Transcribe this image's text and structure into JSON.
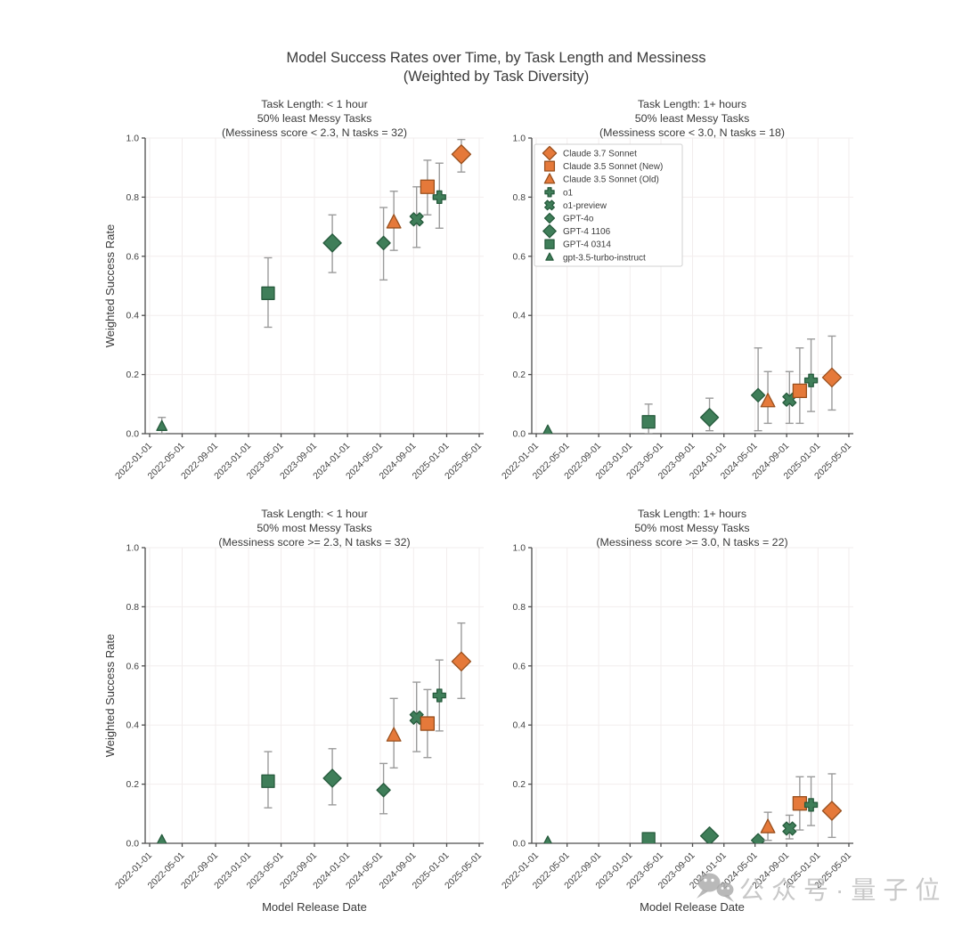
{
  "figure": {
    "title_line1": "Model Success Rates over Time, by Task Length and Messiness",
    "title_line2": "(Weighted by Task Diversity)"
  },
  "colors": {
    "background": "#ffffff",
    "grid": "#f2eded",
    "spine": "#4d4d4d",
    "errorbar": "#9b9b9b",
    "text": "#3a3a3a",
    "palette": {
      "orange": {
        "fill": "#e5793a",
        "edge": "#99501f"
      },
      "green": {
        "fill": "#3f7e59",
        "edge": "#265a3c"
      }
    }
  },
  "watermark": {
    "icon": "wechat-icon",
    "text": "公众号·量子位"
  },
  "chart_data": {
    "type": "scatter",
    "title": "Model Success Rates over Time, by Task Length and Messiness (Weighted by Task Diversity)",
    "xlabel": "Model Release Date",
    "ylabel": "Weighted Success Rate",
    "xlim": [
      "2022-01-01",
      "2025-05-01"
    ],
    "ylim": [
      0.0,
      1.0
    ],
    "grid": true,
    "x_tick_labels": [
      "2022-01-01",
      "2022-05-01",
      "2022-09-01",
      "2023-01-01",
      "2023-05-01",
      "2023-09-01",
      "2024-01-01",
      "2024-05-01",
      "2024-09-01",
      "2025-01-01",
      "2025-05-01"
    ],
    "y_ticks": [
      0.0,
      0.2,
      0.4,
      0.6,
      0.8,
      1.0
    ],
    "y_tick_labels": [
      "0.0",
      "0.2",
      "0.4",
      "0.6",
      "0.8",
      "1.0"
    ],
    "legend_position": "upper-left of top-right subplot",
    "models": [
      {
        "id": "claude-3-7-sonnet",
        "label": "Claude 3.7 Sonnet",
        "shape": "diamond",
        "color": "orange",
        "size": 21,
        "x": "2025-02-24"
      },
      {
        "id": "claude-3-5-sonnet-new",
        "label": "Claude 3.5 Sonnet (New)",
        "shape": "square",
        "color": "orange",
        "size": 15,
        "x": "2024-10-22"
      },
      {
        "id": "claude-3-5-sonnet-old",
        "label": "Claude 3.5 Sonnet (Old)",
        "shape": "triangle",
        "color": "orange",
        "size": 15,
        "x": "2024-06-20"
      },
      {
        "id": "o1",
        "label": "o1",
        "shape": "plus",
        "color": "green",
        "size": 14,
        "x": "2024-12-05"
      },
      {
        "id": "o1-preview",
        "label": "o1-preview",
        "shape": "x",
        "color": "green",
        "size": 14,
        "x": "2024-09-12"
      },
      {
        "id": "gpt-4o",
        "label": "GPT-4o",
        "shape": "diamond",
        "color": "green",
        "size": 15,
        "x": "2024-05-13"
      },
      {
        "id": "gpt-4-1106",
        "label": "GPT-4 1106",
        "shape": "diamond",
        "color": "green",
        "size": 20,
        "x": "2023-11-06"
      },
      {
        "id": "gpt-4-0314",
        "label": "GPT-4 0314",
        "shape": "square",
        "color": "green",
        "size": 14,
        "x": "2023-03-14"
      },
      {
        "id": "gpt-3-5-turbo-instruct",
        "label": "gpt-3.5-turbo-instruct",
        "shape": "triangle",
        "color": "green",
        "size": 11,
        "x": "2022-02-15"
      }
    ],
    "subplots": [
      {
        "id": "top-left",
        "title_lines": [
          "Task Length: < 1 hour",
          "50% least Messy Tasks",
          "(Messiness score < 2.3, N tasks = 32)"
        ],
        "series": [
          {
            "model": "gpt-3-5-turbo-instruct",
            "y": 0.025,
            "lo": 0.0,
            "hi": 0.055
          },
          {
            "model": "gpt-4-0314",
            "y": 0.475,
            "lo": 0.36,
            "hi": 0.595
          },
          {
            "model": "gpt-4-1106",
            "y": 0.645,
            "lo": 0.545,
            "hi": 0.74
          },
          {
            "model": "gpt-4o",
            "y": 0.645,
            "lo": 0.52,
            "hi": 0.765
          },
          {
            "model": "claude-3-5-sonnet-old",
            "y": 0.715,
            "lo": 0.62,
            "hi": 0.82
          },
          {
            "model": "o1-preview",
            "y": 0.725,
            "lo": 0.63,
            "hi": 0.835
          },
          {
            "model": "claude-3-5-sonnet-new",
            "y": 0.835,
            "lo": 0.74,
            "hi": 0.925
          },
          {
            "model": "o1",
            "y": 0.8,
            "lo": 0.695,
            "hi": 0.915
          },
          {
            "model": "claude-3-7-sonnet",
            "y": 0.945,
            "lo": 0.885,
            "hi": 0.995
          }
        ]
      },
      {
        "id": "top-right",
        "title_lines": [
          "Task Length: 1+ hours",
          "50% least Messy Tasks",
          "(Messiness score < 3.0, N tasks = 18)"
        ],
        "series": [
          {
            "model": "gpt-3-5-turbo-instruct",
            "y": 0.01,
            "lo": null,
            "hi": null
          },
          {
            "model": "gpt-4-0314",
            "y": 0.04,
            "lo": 0.0,
            "hi": 0.1
          },
          {
            "model": "gpt-4-1106",
            "y": 0.055,
            "lo": 0.01,
            "hi": 0.12
          },
          {
            "model": "gpt-4o",
            "y": 0.13,
            "lo": 0.01,
            "hi": 0.29
          },
          {
            "model": "claude-3-5-sonnet-old",
            "y": 0.11,
            "lo": 0.035,
            "hi": 0.21
          },
          {
            "model": "o1-preview",
            "y": 0.115,
            "lo": 0.035,
            "hi": 0.21
          },
          {
            "model": "claude-3-5-sonnet-new",
            "y": 0.145,
            "lo": 0.035,
            "hi": 0.29
          },
          {
            "model": "o1",
            "y": 0.18,
            "lo": 0.075,
            "hi": 0.32
          },
          {
            "model": "claude-3-7-sonnet",
            "y": 0.19,
            "lo": 0.08,
            "hi": 0.33
          }
        ]
      },
      {
        "id": "bottom-left",
        "title_lines": [
          "Task Length: < 1 hour",
          "50% most Messy Tasks",
          "(Messiness score >= 2.3, N tasks = 32)"
        ],
        "series": [
          {
            "model": "gpt-3-5-turbo-instruct",
            "y": 0.01,
            "lo": null,
            "hi": null
          },
          {
            "model": "gpt-4-0314",
            "y": 0.21,
            "lo": 0.12,
            "hi": 0.31
          },
          {
            "model": "gpt-4-1106",
            "y": 0.22,
            "lo": 0.13,
            "hi": 0.32
          },
          {
            "model": "gpt-4o",
            "y": 0.18,
            "lo": 0.1,
            "hi": 0.27
          },
          {
            "model": "claude-3-5-sonnet-old",
            "y": 0.365,
            "lo": 0.255,
            "hi": 0.49
          },
          {
            "model": "o1-preview",
            "y": 0.425,
            "lo": 0.31,
            "hi": 0.545
          },
          {
            "model": "claude-3-5-sonnet-new",
            "y": 0.405,
            "lo": 0.29,
            "hi": 0.52
          },
          {
            "model": "o1",
            "y": 0.5,
            "lo": 0.38,
            "hi": 0.62
          },
          {
            "model": "claude-3-7-sonnet",
            "y": 0.615,
            "lo": 0.49,
            "hi": 0.745
          }
        ]
      },
      {
        "id": "bottom-right",
        "title_lines": [
          "Task Length: 1+ hours",
          "50% most Messy Tasks",
          "(Messiness score >= 3.0, N tasks = 22)"
        ],
        "series": [
          {
            "model": "gpt-3-5-turbo-instruct",
            "y": 0.005,
            "lo": null,
            "hi": null
          },
          {
            "model": "gpt-4-0314",
            "y": 0.015,
            "lo": null,
            "hi": null
          },
          {
            "model": "gpt-4-1106",
            "y": 0.025,
            "lo": null,
            "hi": null
          },
          {
            "model": "gpt-4o",
            "y": 0.01,
            "lo": null,
            "hi": null
          },
          {
            "model": "claude-3-5-sonnet-old",
            "y": 0.055,
            "lo": 0.01,
            "hi": 0.105
          },
          {
            "model": "o1-preview",
            "y": 0.05,
            "lo": 0.015,
            "hi": 0.095
          },
          {
            "model": "claude-3-5-sonnet-new",
            "y": 0.135,
            "lo": 0.045,
            "hi": 0.225
          },
          {
            "model": "o1",
            "y": 0.13,
            "lo": 0.06,
            "hi": 0.225
          },
          {
            "model": "claude-3-7-sonnet",
            "y": 0.11,
            "lo": 0.02,
            "hi": 0.235
          }
        ]
      }
    ]
  }
}
